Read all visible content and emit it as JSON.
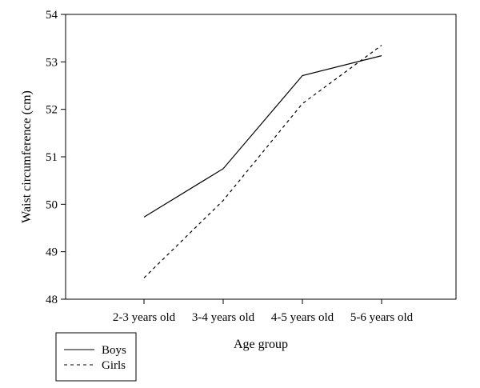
{
  "chart_data": {
    "type": "line",
    "title": "",
    "xlabel": "Age group",
    "ylabel": "Waist circumference (cm)",
    "categories": [
      "2-3 years old",
      "3-4 years old",
      "4-5 years old",
      "5-6 years old"
    ],
    "ylim": [
      48,
      54
    ],
    "yticks": [
      48,
      49,
      50,
      51,
      52,
      53,
      54
    ],
    "grid": false,
    "legend_position": "bottom-left",
    "series": [
      {
        "name": "Boys",
        "values": [
          49.73,
          50.75,
          52.71,
          53.13
        ],
        "color": "#000000",
        "line_style": "solid"
      },
      {
        "name": "Girls",
        "values": [
          48.45,
          50.08,
          52.12,
          53.35
        ],
        "color": "#000000",
        "line_style": "dashed"
      }
    ]
  }
}
